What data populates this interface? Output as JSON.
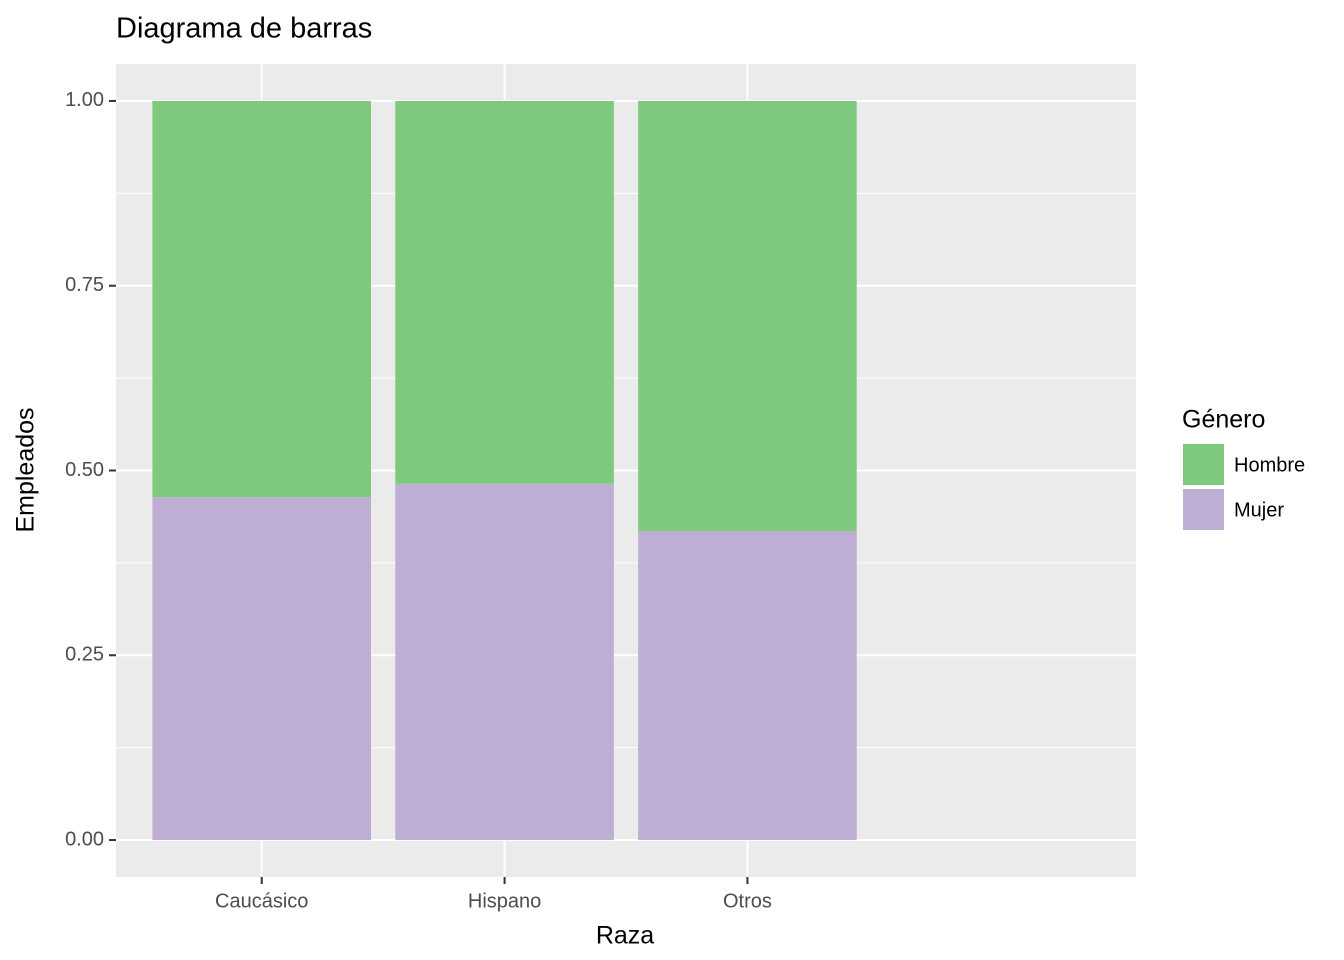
{
  "chart_data": {
    "type": "stacked_bar",
    "title": "Diagrama de barras",
    "x_label": "Raza",
    "y_label": "Empleados",
    "categories": [
      "Caucásico",
      "Hispano",
      "Otros"
    ],
    "series": [
      {
        "name": "Hombre",
        "color": "#7fc97f",
        "values": [
          0.536,
          0.518,
          0.582
        ]
      },
      {
        "name": "Mujer",
        "color": "#beaed4",
        "values": [
          0.464,
          0.482,
          0.418
        ]
      }
    ],
    "legend_title": "Género",
    "ylim": [
      -0.05,
      1.05
    ],
    "yticks": [
      {
        "value": 0,
        "label": "0.00"
      },
      {
        "value": 0.25,
        "label": "0.25"
      },
      {
        "value": 0.5,
        "label": "0.50"
      },
      {
        "value": 0.75,
        "label": "0.75"
      },
      {
        "value": 1,
        "label": "1.00"
      }
    ],
    "grid": true,
    "legend_position": "right"
  }
}
